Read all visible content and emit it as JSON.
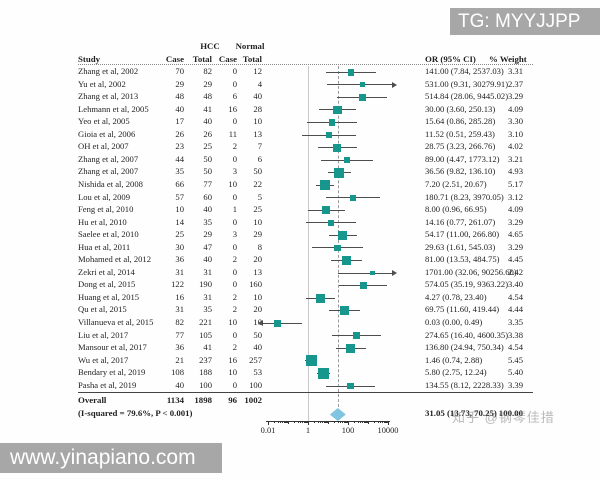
{
  "watermarks": {
    "top_right": "TG: MYYJJPP",
    "bottom_left": "www.yinapiano.com",
    "overlay_zhihu": "知乎 @钢琴佳措"
  },
  "chart_data": {
    "type": "scatter",
    "variant": "forest-plot-meta-analysis",
    "title": "",
    "legend": "none",
    "grid": "off",
    "headers": {
      "study": "Study",
      "group_hcc": "HCC",
      "group_normal": "Normal",
      "case": "Case",
      "total": "Total",
      "or_ci": "OR (95% CI)",
      "weight": "% Weight"
    },
    "x_axis": {
      "scale": "log",
      "ticks": [
        0.01,
        1,
        100,
        10000
      ],
      "tick_labels": [
        "0.01",
        "1",
        "100",
        "10000"
      ],
      "reference_line": 1,
      "overall_line": 31.05
    },
    "colors": {
      "square": "#17968e",
      "diamond": "#7fc4e0",
      "ci_line": "#4d4d4d"
    },
    "studies": [
      {
        "study": "Zhang et al, 2002",
        "hcc_case": 70,
        "hcc_total": 82,
        "normal_case": 0,
        "normal_total": 12,
        "or_label": "141.00 (7.84, 2537.03)",
        "or": 141.0,
        "ci_low": 7.84,
        "ci_high": 2537.03,
        "weight": "3.31"
      },
      {
        "study": "Yu et al, 2002",
        "hcc_case": 29,
        "hcc_total": 29,
        "normal_case": 0,
        "normal_total": 4,
        "or_label": "531.00 (9.31, 30279.91)",
        "or": 531.0,
        "ci_low": 9.31,
        "ci_high": 30279.91,
        "weight": "2.37"
      },
      {
        "study": "Zhang et al, 2013",
        "hcc_case": 48,
        "hcc_total": 48,
        "normal_case": 6,
        "normal_total": 40,
        "or_label": "514.84 (28.06, 9445.02)",
        "or": 514.84,
        "ci_low": 28.06,
        "ci_high": 9445.02,
        "weight": "3.29"
      },
      {
        "study": "Lehmann et al, 2005",
        "hcc_case": 40,
        "hcc_total": 41,
        "normal_case": 16,
        "normal_total": 28,
        "or_label": "30.00 (3.60, 250.13)",
        "or": 30.0,
        "ci_low": 3.6,
        "ci_high": 250.13,
        "weight": "4.09"
      },
      {
        "study": "Yeo et al, 2005",
        "hcc_case": 17,
        "hcc_total": 40,
        "normal_case": 0,
        "normal_total": 10,
        "or_label": "15.64 (0.86, 285.28)",
        "or": 15.64,
        "ci_low": 0.86,
        "ci_high": 285.28,
        "weight": "3.30"
      },
      {
        "study": "Gioia et al, 2006",
        "hcc_case": 26,
        "hcc_total": 26,
        "normal_case": 11,
        "normal_total": 13,
        "or_label": "11.52 (0.51, 259.43)",
        "or": 11.52,
        "ci_low": 0.51,
        "ci_high": 259.43,
        "weight": "3.10"
      },
      {
        "study": "OH et al, 2007",
        "hcc_case": 23,
        "hcc_total": 25,
        "normal_case": 2,
        "normal_total": 7,
        "or_label": "28.75 (3.23, 266.76)",
        "or": 28.75,
        "ci_low": 3.23,
        "ci_high": 266.76,
        "weight": "4.02"
      },
      {
        "study": "Zhang et al, 2007",
        "hcc_case": 44,
        "hcc_total": 50,
        "normal_case": 0,
        "normal_total": 6,
        "or_label": "89.00 (4.47, 1773.12)",
        "or": 89.0,
        "ci_low": 4.47,
        "ci_high": 1773.12,
        "weight": "3.21"
      },
      {
        "study": "Zhang et al, 2007",
        "hcc_case": 35,
        "hcc_total": 50,
        "normal_case": 3,
        "normal_total": 50,
        "or_label": "36.56 (9.82, 136.10)",
        "or": 36.56,
        "ci_low": 9.82,
        "ci_high": 136.1,
        "weight": "4.93"
      },
      {
        "study": "Nishida et al, 2008",
        "hcc_case": 66,
        "hcc_total": 77,
        "normal_case": 10,
        "normal_total": 22,
        "or_label": "7.20 (2.51, 20.67)",
        "or": 7.2,
        "ci_low": 2.51,
        "ci_high": 20.67,
        "weight": "5.17"
      },
      {
        "study": "Lou et al, 2009",
        "hcc_case": 57,
        "hcc_total": 60,
        "normal_case": 0,
        "normal_total": 5,
        "or_label": "180.71 (8.23, 3970.05)",
        "or": 180.71,
        "ci_low": 8.23,
        "ci_high": 3970.05,
        "weight": "3.12"
      },
      {
        "study": "Feng et al, 2010",
        "hcc_case": 10,
        "hcc_total": 40,
        "normal_case": 1,
        "normal_total": 25,
        "or_label": "8.00 (0.96, 66.95)",
        "or": 8.0,
        "ci_low": 0.96,
        "ci_high": 66.95,
        "weight": "4.09"
      },
      {
        "study": "Hu et al, 2010",
        "hcc_case": 14,
        "hcc_total": 35,
        "normal_case": 0,
        "normal_total": 10,
        "or_label": "14.16 (0.77, 261.07)",
        "or": 14.16,
        "ci_low": 0.77,
        "ci_high": 261.07,
        "weight": "3.29"
      },
      {
        "study": "Saelee et al, 2010",
        "hcc_case": 25,
        "hcc_total": 29,
        "normal_case": 3,
        "normal_total": 29,
        "or_label": "54.17 (11.00, 266.80)",
        "or": 54.17,
        "ci_low": 11.0,
        "ci_high": 266.8,
        "weight": "4.65"
      },
      {
        "study": "Hua et al, 2011",
        "hcc_case": 30,
        "hcc_total": 47,
        "normal_case": 0,
        "normal_total": 8,
        "or_label": "29.63 (1.61, 545.03)",
        "or": 29.63,
        "ci_low": 1.61,
        "ci_high": 545.03,
        "weight": "3.29"
      },
      {
        "study": "Mohamed et al, 2012",
        "hcc_case": 36,
        "hcc_total": 40,
        "normal_case": 2,
        "normal_total": 20,
        "or_label": "81.00 (13.53, 484.75)",
        "or": 81.0,
        "ci_low": 13.53,
        "ci_high": 484.75,
        "weight": "4.45"
      },
      {
        "study": "Zekri et al, 2014",
        "hcc_case": 31,
        "hcc_total": 31,
        "normal_case": 0,
        "normal_total": 13,
        "or_label": "1701.00 (32.06, 90256.60)",
        "or": 1701.0,
        "ci_low": 32.06,
        "ci_high": 90256.6,
        "weight": "2.42"
      },
      {
        "study": "Dong et al, 2015",
        "hcc_case": 122,
        "hcc_total": 190,
        "normal_case": 0,
        "normal_total": 160,
        "or_label": "574.05 (35.19, 9363.22)",
        "or": 574.05,
        "ci_low": 35.19,
        "ci_high": 9363.22,
        "weight": "3.40"
      },
      {
        "study": "Huang et al, 2015",
        "hcc_case": 16,
        "hcc_total": 31,
        "normal_case": 2,
        "normal_total": 10,
        "or_label": "4.27 (0.78, 23.40)",
        "or": 4.27,
        "ci_low": 0.78,
        "ci_high": 23.4,
        "weight": "4.54"
      },
      {
        "study": "Qu et al, 2015",
        "hcc_case": 31,
        "hcc_total": 35,
        "normal_case": 2,
        "normal_total": 20,
        "or_label": "69.75 (11.60, 419.44)",
        "or": 69.75,
        "ci_low": 11.6,
        "ci_high": 419.44,
        "weight": "4.44"
      },
      {
        "study": "Villanueva et al, 2015",
        "hcc_case": 82,
        "hcc_total": 221,
        "normal_case": 10,
        "normal_total": 10,
        "or_label": "0.03 (0.00, 0.49)",
        "or": 0.03,
        "ci_low": 0,
        "ci_high": 0.49,
        "weight": "3.35"
      },
      {
        "study": "Liu et al, 2017",
        "hcc_case": 77,
        "hcc_total": 105,
        "normal_case": 0,
        "normal_total": 50,
        "or_label": "274.65 (16.40, 4600.35)",
        "or": 274.65,
        "ci_low": 16.4,
        "ci_high": 4600.35,
        "weight": "3.38"
      },
      {
        "study": "Mansour et al, 2017",
        "hcc_case": 36,
        "hcc_total": 41,
        "normal_case": 2,
        "normal_total": 40,
        "or_label": "136.80 (24.94, 750.34)",
        "or": 136.8,
        "ci_low": 24.94,
        "ci_high": 750.34,
        "weight": "4.54"
      },
      {
        "study": "Wu et al, 2017",
        "hcc_case": 21,
        "hcc_total": 237,
        "normal_case": 16,
        "normal_total": 257,
        "or_label": "1.46 (0.74, 2.88)",
        "or": 1.46,
        "ci_low": 0.74,
        "ci_high": 2.88,
        "weight": "5.45"
      },
      {
        "study": "Bendary et al, 2019",
        "hcc_case": 108,
        "hcc_total": 188,
        "normal_case": 10,
        "normal_total": 53,
        "or_label": "5.80 (2.75, 12.24)",
        "or": 5.8,
        "ci_low": 2.75,
        "ci_high": 12.24,
        "weight": "5.40"
      },
      {
        "study": "Pasha et al, 2019",
        "hcc_case": 40,
        "hcc_total": 100,
        "normal_case": 0,
        "normal_total": 100,
        "or_label": "134.55 (8.12, 2228.33)",
        "or": 134.55,
        "ci_low": 8.12,
        "ci_high": 2228.33,
        "weight": "3.39"
      }
    ],
    "overall": {
      "label": "Overall",
      "hcc_case": 1134,
      "hcc_total": 1898,
      "normal_case": 96,
      "normal_total": 1002,
      "or_label": "31.05 (13.73, 70.25)",
      "or": 31.05,
      "ci_low": 13.73,
      "ci_high": 70.25,
      "weight": "100.00"
    },
    "heterogeneity": "(I-squared = 79.6%, P < 0.001)"
  }
}
